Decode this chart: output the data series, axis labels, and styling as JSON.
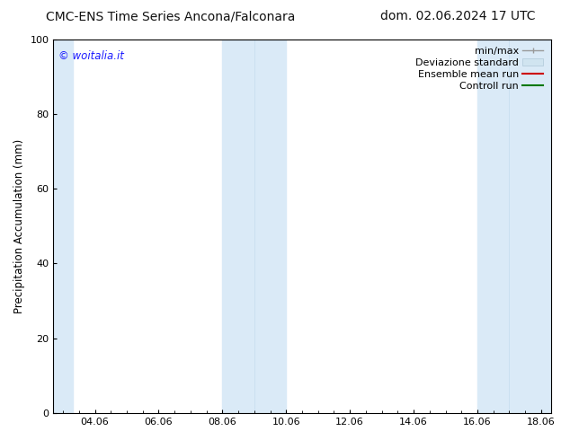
{
  "title_left": "CMC-ENS Time Series Ancona/Falconara",
  "title_right": "dom. 02.06.2024 17 UTC",
  "ylabel": "Precipitation Accumulation (mm)",
  "ylim": [
    0,
    100
  ],
  "yticks": [
    0,
    20,
    40,
    60,
    80,
    100
  ],
  "xtick_labels": [
    "04.06",
    "06.06",
    "08.06",
    "10.06",
    "12.06",
    "14.06",
    "16.06",
    "18.06"
  ],
  "watermark": "© woitalia.it",
  "watermark_color": "#1a1aff",
  "bg_color": "#ffffff",
  "plot_bg_color": "#ffffff",
  "shaded_color": "#daeaf7",
  "legend_items": [
    {
      "label": "min/max"
    },
    {
      "label": "Deviazione standard"
    },
    {
      "label": "Ensemble mean run"
    },
    {
      "label": "Controll run"
    }
  ],
  "font_size_title": 10,
  "font_size_labels": 8.5,
  "font_size_ticks": 8,
  "font_size_legend": 8,
  "font_size_watermark": 8.5
}
